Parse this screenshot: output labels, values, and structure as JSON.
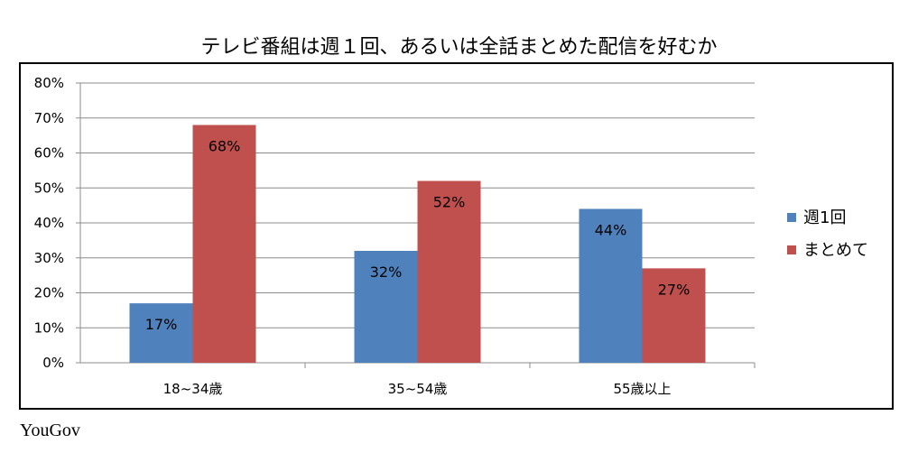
{
  "chart_data": {
    "type": "bar",
    "title": "テレビ番組は週１回、あるいは全話まとめた配信を好むか",
    "categories": [
      "18~34歳",
      "35~54歳",
      "55歳以上"
    ],
    "series": [
      {
        "name": "週1回",
        "values": [
          17,
          32,
          44
        ],
        "labels": [
          "17%",
          "32%",
          "44%"
        ],
        "color": "#4f81bd"
      },
      {
        "name": "まとめて",
        "values": [
          68,
          52,
          27
        ],
        "labels": [
          "68%",
          "52%",
          "27%"
        ],
        "color": "#c0504d"
      }
    ],
    "ylim": [
      0,
      80
    ],
    "yticks": [
      "0%",
      "10%",
      "20%",
      "30%",
      "40%",
      "50%",
      "60%",
      "70%",
      "80%"
    ],
    "grid": true,
    "legend": "right"
  },
  "source": "YouGov"
}
